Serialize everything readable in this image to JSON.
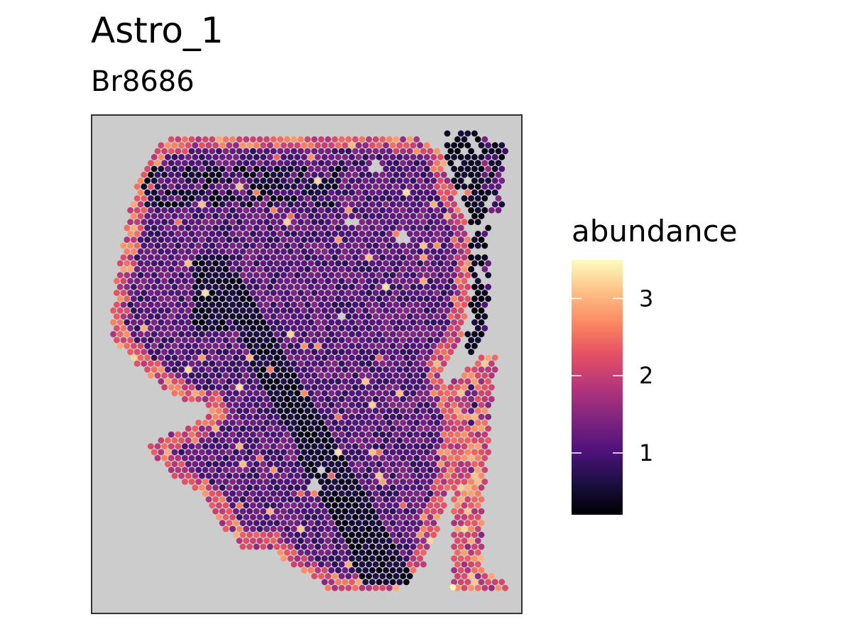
{
  "chart_data": {
    "type": "scatter",
    "title": "Astro_1",
    "subtitle": "Br8686",
    "xlabel": "",
    "ylabel": "",
    "grid": false,
    "panel_background": "#cccccc",
    "colormap": "magma",
    "legend": {
      "title": "abundance",
      "placement": "right",
      "range": [
        0.2,
        3.5
      ],
      "ticks": [
        1,
        2,
        3
      ],
      "tick_labels": [
        "1",
        "2",
        "3"
      ]
    },
    "description_of_points": "Visium tissue spots colored by Astro_1 abundance; most spots between 0.3 and 1.5, higher values (2–3.5) along tissue borders."
  }
}
